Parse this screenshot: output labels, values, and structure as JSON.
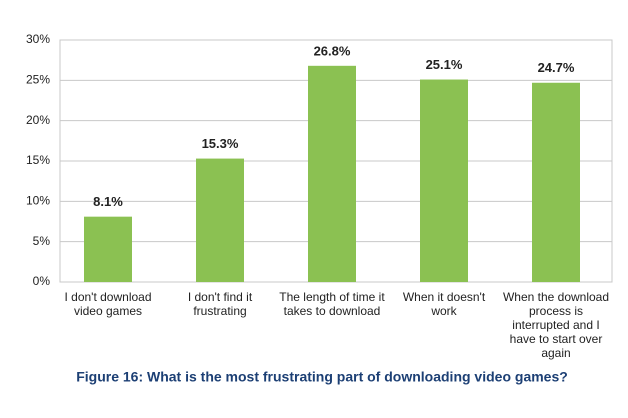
{
  "chart_data": {
    "type": "bar",
    "title": "Figure 16: What is the most frustrating part of downloading video games?",
    "categories": [
      "I don't download video games",
      "I don't find it frustrating",
      "The length of time it takes to download",
      "When it doesn't work",
      "When the download process is interrupted and I have to start over again"
    ],
    "values": [
      8.1,
      15.3,
      26.8,
      25.1,
      24.7
    ],
    "value_labels": [
      "8.1%",
      "15.3%",
      "26.8%",
      "25.1%",
      "24.7%"
    ],
    "color": "#8bc152",
    "ylim": [
      0,
      30
    ],
    "yticks": [
      {
        "value": 0,
        "label": "0%"
      },
      {
        "value": 5,
        "label": "5%"
      },
      {
        "value": 10,
        "label": "10%"
      },
      {
        "value": 15,
        "label": "15%"
      },
      {
        "value": 20,
        "label": "20%"
      },
      {
        "value": 25,
        "label": "25%"
      },
      {
        "value": 30,
        "label": "30%"
      }
    ],
    "grid": true
  }
}
